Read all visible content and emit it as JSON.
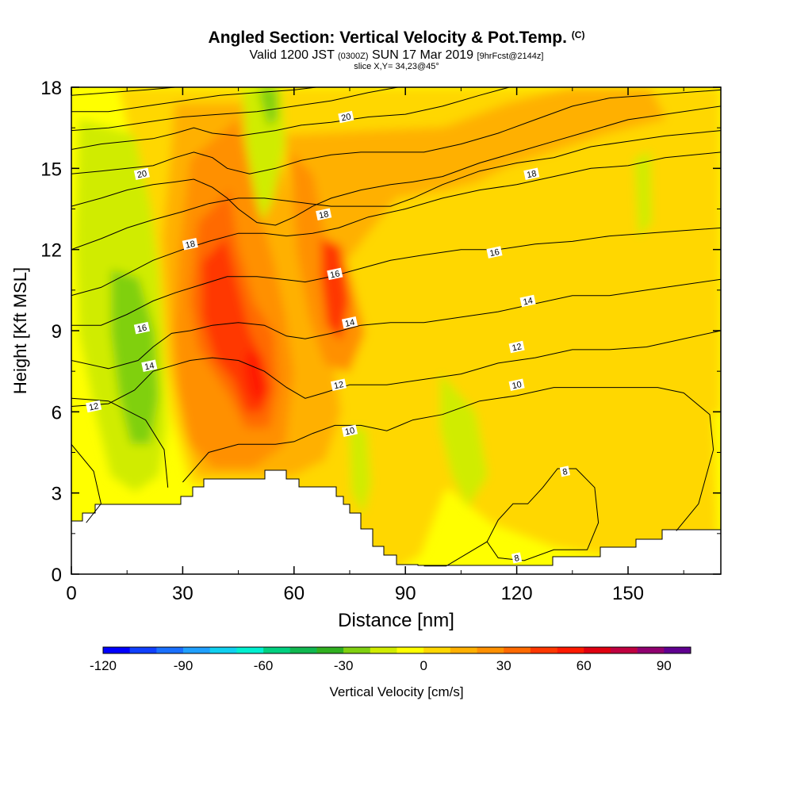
{
  "header": {
    "title": "Angled Section: Vertical Velocity & Pot.Temp.",
    "title_unit": "(C)",
    "valid_prefix": "Valid 1200 JST",
    "valid_zulu": "(0300Z)",
    "valid_date": "SUN 17 Mar 2019",
    "forecast_tag": "[9hrFcst@2144z]",
    "slice_info": "slice X,Y= 34,23@45°"
  },
  "chart_data": {
    "type": "heatmap",
    "xlabel": "Distance [nm]",
    "ylabel": "Height [Kft MSL]",
    "xlim": [
      0,
      175
    ],
    "ylim": [
      0,
      18
    ],
    "x_ticks": [
      0,
      30,
      60,
      90,
      120,
      150
    ],
    "y_ticks": [
      0,
      3,
      6,
      9,
      12,
      15,
      18
    ],
    "grid": false,
    "colorbar": {
      "label": "Vertical Velocity [cm/s]",
      "min": -120,
      "max": 100,
      "step": 10,
      "tick_values": [
        -120,
        -90,
        -60,
        -30,
        0,
        30,
        60,
        90
      ],
      "colors": [
        "#0000ff",
        "#1040ff",
        "#1a70ff",
        "#20a0ff",
        "#10d0f0",
        "#00f0d0",
        "#00d080",
        "#10b850",
        "#30b020",
        "#80d010",
        "#d0ec00",
        "#ffff00",
        "#ffd700",
        "#ffb000",
        "#ff9000",
        "#ff6a00",
        "#ff3800",
        "#ff1a00",
        "#e00010",
        "#c00040",
        "#900070",
        "#600090"
      ]
    },
    "pot_temp_contours": [
      {
        "value": 8,
        "points": [
          [
            95,
            0.3
          ],
          [
            101,
            0.3
          ],
          [
            112,
            1.2
          ],
          [
            115,
            2.0
          ],
          [
            119,
            2.6
          ],
          [
            123,
            2.6
          ],
          [
            127,
            3.2
          ],
          [
            131,
            3.9
          ],
          [
            136,
            3.9
          ],
          [
            141,
            3.2
          ],
          [
            142,
            1.9
          ],
          [
            139,
            0.9
          ],
          [
            130,
            0.9
          ],
          [
            122,
            0.5
          ],
          [
            115,
            0.6
          ],
          [
            112,
            1.2
          ]
        ]
      },
      {
        "value": 8,
        "points": [
          [
            0,
            4.8
          ],
          [
            6,
            3.8
          ],
          [
            8,
            2.6
          ],
          [
            4,
            1.9
          ]
        ]
      },
      {
        "value": 10,
        "points": [
          [
            0,
            6.5
          ],
          [
            10,
            6.4
          ],
          [
            20,
            5.7
          ],
          [
            25,
            4.6
          ],
          [
            26,
            3.2
          ]
        ]
      },
      {
        "value": 10,
        "points": [
          [
            30,
            3.4
          ],
          [
            37,
            4.5
          ],
          [
            45,
            4.8
          ],
          [
            50,
            4.8
          ],
          [
            55,
            4.8
          ],
          [
            60,
            4.9
          ],
          [
            65,
            5.2
          ],
          [
            71,
            5.5
          ],
          [
            78,
            5.5
          ],
          [
            85,
            5.3
          ],
          [
            92,
            5.7
          ],
          [
            100,
            5.9
          ],
          [
            110,
            6.4
          ],
          [
            120,
            6.6
          ],
          [
            130,
            6.9
          ],
          [
            140,
            6.9
          ],
          [
            150,
            6.9
          ],
          [
            158,
            6.9
          ],
          [
            165,
            6.7
          ],
          [
            172,
            5.9
          ],
          [
            173,
            4.6
          ],
          [
            169,
            2.6
          ],
          [
            163,
            1.6
          ]
        ]
      },
      {
        "value": 12,
        "points": [
          [
            0,
            6.2
          ],
          [
            10,
            6.3
          ],
          [
            17,
            6.8
          ],
          [
            22,
            7.5
          ],
          [
            27,
            7.7
          ],
          [
            32,
            7.9
          ],
          [
            38,
            8.0
          ],
          [
            45,
            7.9
          ],
          [
            52,
            7.5
          ],
          [
            58,
            6.9
          ],
          [
            63,
            6.5
          ],
          [
            68,
            6.7
          ],
          [
            75,
            7.0
          ],
          [
            85,
            7.0
          ],
          [
            95,
            7.2
          ],
          [
            105,
            7.4
          ],
          [
            115,
            7.8
          ],
          [
            125,
            8.0
          ],
          [
            135,
            8.3
          ],
          [
            145,
            8.3
          ],
          [
            155,
            8.4
          ],
          [
            165,
            8.7
          ],
          [
            175,
            9.0
          ]
        ]
      },
      {
        "value": 14,
        "points": [
          [
            0,
            7.9
          ],
          [
            10,
            7.6
          ],
          [
            18,
            7.9
          ],
          [
            22,
            8.4
          ],
          [
            27,
            8.9
          ],
          [
            32,
            9.0
          ],
          [
            38,
            9.2
          ],
          [
            45,
            9.3
          ],
          [
            52,
            9.2
          ],
          [
            58,
            8.8
          ],
          [
            63,
            8.7
          ],
          [
            70,
            8.9
          ],
          [
            78,
            9.2
          ],
          [
            86,
            9.3
          ],
          [
            95,
            9.3
          ],
          [
            105,
            9.5
          ],
          [
            115,
            9.7
          ],
          [
            125,
            10.0
          ],
          [
            135,
            10.3
          ],
          [
            145,
            10.3
          ],
          [
            155,
            10.5
          ],
          [
            165,
            10.7
          ],
          [
            175,
            10.9
          ]
        ]
      },
      {
        "value": 16,
        "points": [
          [
            0,
            9.2
          ],
          [
            8,
            9.2
          ],
          [
            15,
            9.6
          ],
          [
            22,
            10.1
          ],
          [
            28,
            10.4
          ],
          [
            35,
            10.7
          ],
          [
            42,
            11.0
          ],
          [
            50,
            11.0
          ],
          [
            57,
            10.9
          ],
          [
            63,
            10.8
          ],
          [
            70,
            11.0
          ],
          [
            78,
            11.3
          ],
          [
            86,
            11.6
          ],
          [
            95,
            11.8
          ],
          [
            105,
            12.0
          ],
          [
            115,
            12.0
          ],
          [
            125,
            12.2
          ],
          [
            135,
            12.3
          ],
          [
            145,
            12.5
          ],
          [
            155,
            12.6
          ],
          [
            165,
            12.7
          ],
          [
            175,
            12.8
          ]
        ]
      },
      {
        "value": 18,
        "points": [
          [
            0,
            10.3
          ],
          [
            8,
            10.6
          ],
          [
            15,
            11.1
          ],
          [
            22,
            11.6
          ],
          [
            30,
            12.0
          ],
          [
            37,
            12.3
          ],
          [
            45,
            12.6
          ],
          [
            52,
            12.6
          ],
          [
            58,
            12.5
          ],
          [
            65,
            12.6
          ],
          [
            72,
            12.8
          ],
          [
            80,
            13.2
          ],
          [
            90,
            13.5
          ],
          [
            100,
            13.9
          ],
          [
            110,
            14.2
          ],
          [
            120,
            14.4
          ],
          [
            130,
            14.7
          ],
          [
            140,
            15.0
          ],
          [
            150,
            15.1
          ],
          [
            160,
            15.4
          ],
          [
            175,
            15.6
          ]
        ]
      },
      {
        "value": 18,
        "points": [
          [
            0,
            12.0
          ],
          [
            8,
            12.4
          ],
          [
            15,
            12.8
          ],
          [
            22,
            13.1
          ],
          [
            30,
            13.4
          ],
          [
            37,
            13.7
          ],
          [
            45,
            13.9
          ],
          [
            52,
            13.9
          ],
          [
            58,
            13.8
          ],
          [
            64,
            13.7
          ],
          [
            70,
            13.6
          ],
          [
            78,
            13.6
          ],
          [
            86,
            13.6
          ],
          [
            92,
            13.9
          ],
          [
            100,
            14.4
          ],
          [
            110,
            14.9
          ],
          [
            120,
            15.2
          ],
          [
            130,
            15.4
          ],
          [
            140,
            15.8
          ],
          [
            150,
            16.0
          ],
          [
            160,
            16.2
          ],
          [
            175,
            16.4
          ]
        ]
      },
      {
        "value": 20,
        "points": [
          [
            0,
            13.6
          ],
          [
            8,
            13.9
          ],
          [
            15,
            14.2
          ],
          [
            22,
            14.4
          ],
          [
            28,
            14.5
          ],
          [
            33,
            14.6
          ],
          [
            38,
            14.3
          ],
          [
            42,
            13.9
          ],
          [
            45,
            13.5
          ],
          [
            50,
            13.0
          ],
          [
            55,
            12.9
          ],
          [
            60,
            13.2
          ],
          [
            65,
            13.6
          ],
          [
            70,
            13.9
          ],
          [
            78,
            14.2
          ],
          [
            86,
            14.4
          ],
          [
            92,
            14.5
          ],
          [
            100,
            14.7
          ],
          [
            110,
            15.2
          ],
          [
            120,
            15.6
          ],
          [
            130,
            16.0
          ],
          [
            140,
            16.4
          ],
          [
            150,
            16.8
          ],
          [
            160,
            17.0
          ],
          [
            175,
            17.3
          ]
        ]
      },
      {
        "value": 20,
        "points": [
          [
            0,
            14.8
          ],
          [
            8,
            14.9
          ],
          [
            15,
            15.0
          ],
          [
            22,
            15.1
          ],
          [
            28,
            15.4
          ],
          [
            33,
            15.6
          ],
          [
            38,
            15.4
          ],
          [
            42,
            15.0
          ],
          [
            48,
            14.8
          ],
          [
            55,
            15.0
          ],
          [
            62,
            15.3
          ],
          [
            70,
            15.5
          ],
          [
            78,
            15.6
          ],
          [
            86,
            15.6
          ],
          [
            95,
            15.6
          ],
          [
            105,
            15.9
          ],
          [
            115,
            16.3
          ],
          [
            125,
            16.8
          ],
          [
            135,
            17.3
          ],
          [
            145,
            17.6
          ],
          [
            155,
            17.7
          ],
          [
            165,
            17.8
          ],
          [
            175,
            17.9
          ]
        ]
      },
      {
        "value": 20,
        "points": [
          [
            0,
            15.7
          ],
          [
            8,
            15.9
          ],
          [
            15,
            16.0
          ],
          [
            22,
            16.1
          ],
          [
            28,
            16.3
          ],
          [
            33,
            16.5
          ],
          [
            38,
            16.3
          ],
          [
            45,
            16.2
          ],
          [
            55,
            16.4
          ],
          [
            62,
            16.6
          ],
          [
            70,
            16.7
          ],
          [
            80,
            16.9
          ],
          [
            90,
            17.0
          ],
          [
            100,
            17.3
          ],
          [
            110,
            17.7
          ],
          [
            118,
            18.0
          ]
        ]
      },
      {
        "value": 20,
        "points": [
          [
            0,
            16.4
          ],
          [
            10,
            16.5
          ],
          [
            20,
            16.7
          ],
          [
            30,
            16.9
          ],
          [
            40,
            17.0
          ],
          [
            50,
            17.1
          ],
          [
            60,
            17.3
          ],
          [
            70,
            17.5
          ],
          [
            80,
            17.8
          ],
          [
            88,
            18.0
          ]
        ]
      },
      {
        "value": 20,
        "points": [
          [
            0,
            17.1
          ],
          [
            10,
            17.1
          ],
          [
            20,
            17.3
          ],
          [
            30,
            17.5
          ],
          [
            40,
            17.7
          ],
          [
            50,
            17.8
          ],
          [
            60,
            17.9
          ],
          [
            66,
            18.0
          ]
        ]
      },
      {
        "value": 20,
        "points": [
          [
            0,
            17.7
          ],
          [
            10,
            17.8
          ],
          [
            20,
            17.9
          ],
          [
            28,
            18.0
          ]
        ]
      }
    ],
    "contour_labels": [
      {
        "text": "20",
        "x": 19,
        "y": 14.8
      },
      {
        "text": "20",
        "x": 74,
        "y": 16.9
      },
      {
        "text": "18",
        "x": 32,
        "y": 12.2
      },
      {
        "text": "18",
        "x": 68,
        "y": 13.3
      },
      {
        "text": "18",
        "x": 124,
        "y": 14.8
      },
      {
        "text": "16",
        "x": 19,
        "y": 9.1
      },
      {
        "text": "16",
        "x": 71,
        "y": 11.1
      },
      {
        "text": "16",
        "x": 114,
        "y": 11.9
      },
      {
        "text": "14",
        "x": 21,
        "y": 7.7
      },
      {
        "text": "14",
        "x": 75,
        "y": 9.3
      },
      {
        "text": "14",
        "x": 123,
        "y": 10.1
      },
      {
        "text": "12",
        "x": 6,
        "y": 6.2
      },
      {
        "text": "12",
        "x": 72,
        "y": 7.0
      },
      {
        "text": "12",
        "x": 120,
        "y": 8.4
      },
      {
        "text": "10",
        "x": 75,
        "y": 5.3
      },
      {
        "text": "10",
        "x": 120,
        "y": 7.0
      },
      {
        "text": "8",
        "x": 133,
        "y": 3.8
      },
      {
        "text": "8",
        "x": 120,
        "y": 0.6
      }
    ]
  }
}
